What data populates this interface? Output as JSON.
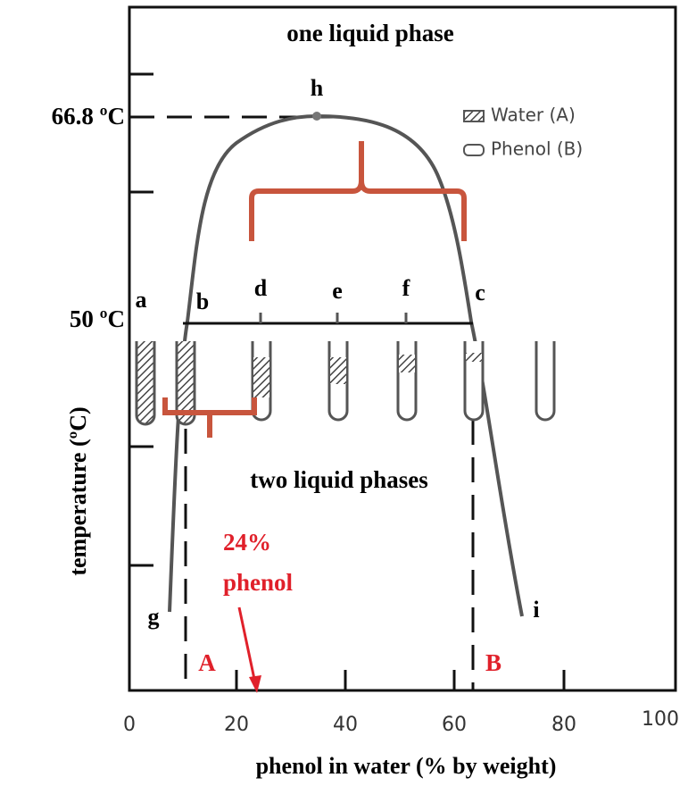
{
  "regions": {
    "top": "one liquid phase",
    "bottom": "two liquid phases"
  },
  "axes": {
    "y_label": "temperature (ºC)",
    "x_label": "phenol in water (% by weight)",
    "temperature_marks": [
      "66.8 ºC",
      "50 ºC"
    ],
    "x_tick_labels": [
      "0",
      "20",
      "40",
      "60",
      "80",
      "100"
    ]
  },
  "points": {
    "a": "a",
    "b": "b",
    "c": "c",
    "d": "d",
    "e": "e",
    "f": "f",
    "g": "g",
    "h": "h",
    "i": "i"
  },
  "legend": [
    "Water (A)",
    "Phenol (B)"
  ],
  "annotation": {
    "line1": "24%",
    "line2": "phenol"
  },
  "phase_markers": [
    "A",
    "B"
  ]
}
